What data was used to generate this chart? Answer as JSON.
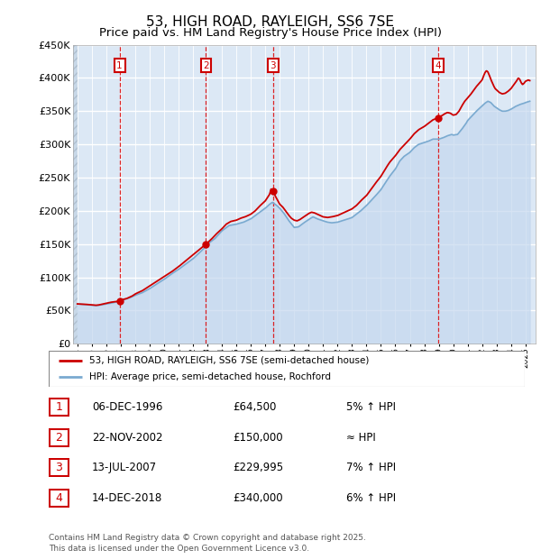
{
  "title": "53, HIGH ROAD, RAYLEIGH, SS6 7SE",
  "subtitle": "Price paid vs. HM Land Registry's House Price Index (HPI)",
  "ylim": [
    0,
    450000
  ],
  "yticks": [
    0,
    50000,
    100000,
    150000,
    200000,
    250000,
    300000,
    350000,
    400000,
    450000
  ],
  "ytick_labels": [
    "£0",
    "£50K",
    "£100K",
    "£150K",
    "£200K",
    "£250K",
    "£300K",
    "£350K",
    "£400K",
    "£450K"
  ],
  "xmin": 1993.7,
  "xmax": 2025.7,
  "bg_color": "#dce8f5",
  "grid_color": "#ffffff",
  "sales": [
    {
      "year": 1996.92,
      "price": 64500,
      "label": "1"
    },
    {
      "year": 2002.9,
      "price": 150000,
      "label": "2"
    },
    {
      "year": 2007.54,
      "price": 229995,
      "label": "3"
    },
    {
      "year": 2018.96,
      "price": 340000,
      "label": "4"
    }
  ],
  "sale_dline_color": "#dd0000",
  "sale_marker_box_color": "#cc0000",
  "red_line_color": "#cc0000",
  "blue_line_color": "#7aaad0",
  "blue_fill_color": "#c5d8ee",
  "legend_entries": [
    "53, HIGH ROAD, RAYLEIGH, SS6 7SE (semi-detached house)",
    "HPI: Average price, semi-detached house, Rochford"
  ],
  "table_entries": [
    {
      "num": "1",
      "date": "06-DEC-1996",
      "price": "£64,500",
      "rel": "5% ↑ HPI"
    },
    {
      "num": "2",
      "date": "22-NOV-2002",
      "price": "£150,000",
      "rel": "≈ HPI"
    },
    {
      "num": "3",
      "date": "13-JUL-2007",
      "price": "£229,995",
      "rel": "7% ↑ HPI"
    },
    {
      "num": "4",
      "date": "14-DEC-2018",
      "price": "£340,000",
      "rel": "6% ↑ HPI"
    }
  ],
  "footer": "Contains HM Land Registry data © Crown copyright and database right 2025.\nThis data is licensed under the Open Government Licence v3.0.",
  "title_fontsize": 11,
  "subtitle_fontsize": 9.5
}
